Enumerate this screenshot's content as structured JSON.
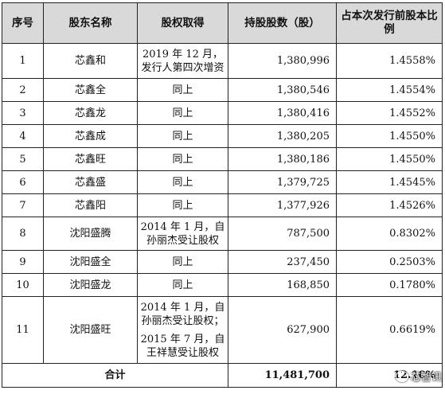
{
  "headers": [
    "序号",
    "股东名称",
    "股权取得",
    "持股股数（股）",
    "占本次发行前股本比例"
  ],
  "rows": [
    {
      "no": "1",
      "name": "芯鑫和",
      "source": [
        "2019 年 12 月，发行人第四次增资"
      ],
      "shares": "1,380,996",
      "ratio": "1.4558%"
    },
    {
      "no": "2",
      "name": "芯鑫全",
      "source": [
        "同上"
      ],
      "shares": "1,380,546",
      "ratio": "1.4554%"
    },
    {
      "no": "3",
      "name": "芯鑫龙",
      "source": [
        "同上"
      ],
      "shares": "1,380,416",
      "ratio": "1.4552%"
    },
    {
      "no": "4",
      "name": "芯鑫成",
      "source": [
        "同上"
      ],
      "shares": "1,380,205",
      "ratio": "1.4550%"
    },
    {
      "no": "5",
      "name": "芯鑫旺",
      "source": [
        "同上"
      ],
      "shares": "1,380,186",
      "ratio": "1.4550%"
    },
    {
      "no": "6",
      "name": "芯鑫盛",
      "source": [
        "同上"
      ],
      "shares": "1,379,725",
      "ratio": "1.4545%"
    },
    {
      "no": "7",
      "name": "芯鑫阳",
      "source": [
        "同上"
      ],
      "shares": "1,377,926",
      "ratio": "1.4526%"
    },
    {
      "no": "8",
      "name": "沈阳盛腾",
      "source": [
        "2014 年 1 月，自孙丽杰受让股权"
      ],
      "shares": "787,500",
      "ratio": "0.8302%"
    },
    {
      "no": "9",
      "name": "沈阳盛全",
      "source": [
        "同上"
      ],
      "shares": "237,450",
      "ratio": "0.2503%"
    },
    {
      "no": "10",
      "name": "沈阳盛龙",
      "source": [
        "同上"
      ],
      "shares": "168,850",
      "ratio": "0.1780%"
    },
    {
      "no": "11",
      "name": "沈阳盛旺",
      "source": [
        "2014 年 1 月，自孙丽杰受让股权；",
        "2015 年 7 月，自王祥慧受让股权"
      ],
      "shares": "627,900",
      "ratio": "0.6619%"
    }
  ],
  "total": {
    "label": "合计",
    "shares": "11,481,700",
    "ratio": "12.10%"
  },
  "watermark": "芯智讯"
}
